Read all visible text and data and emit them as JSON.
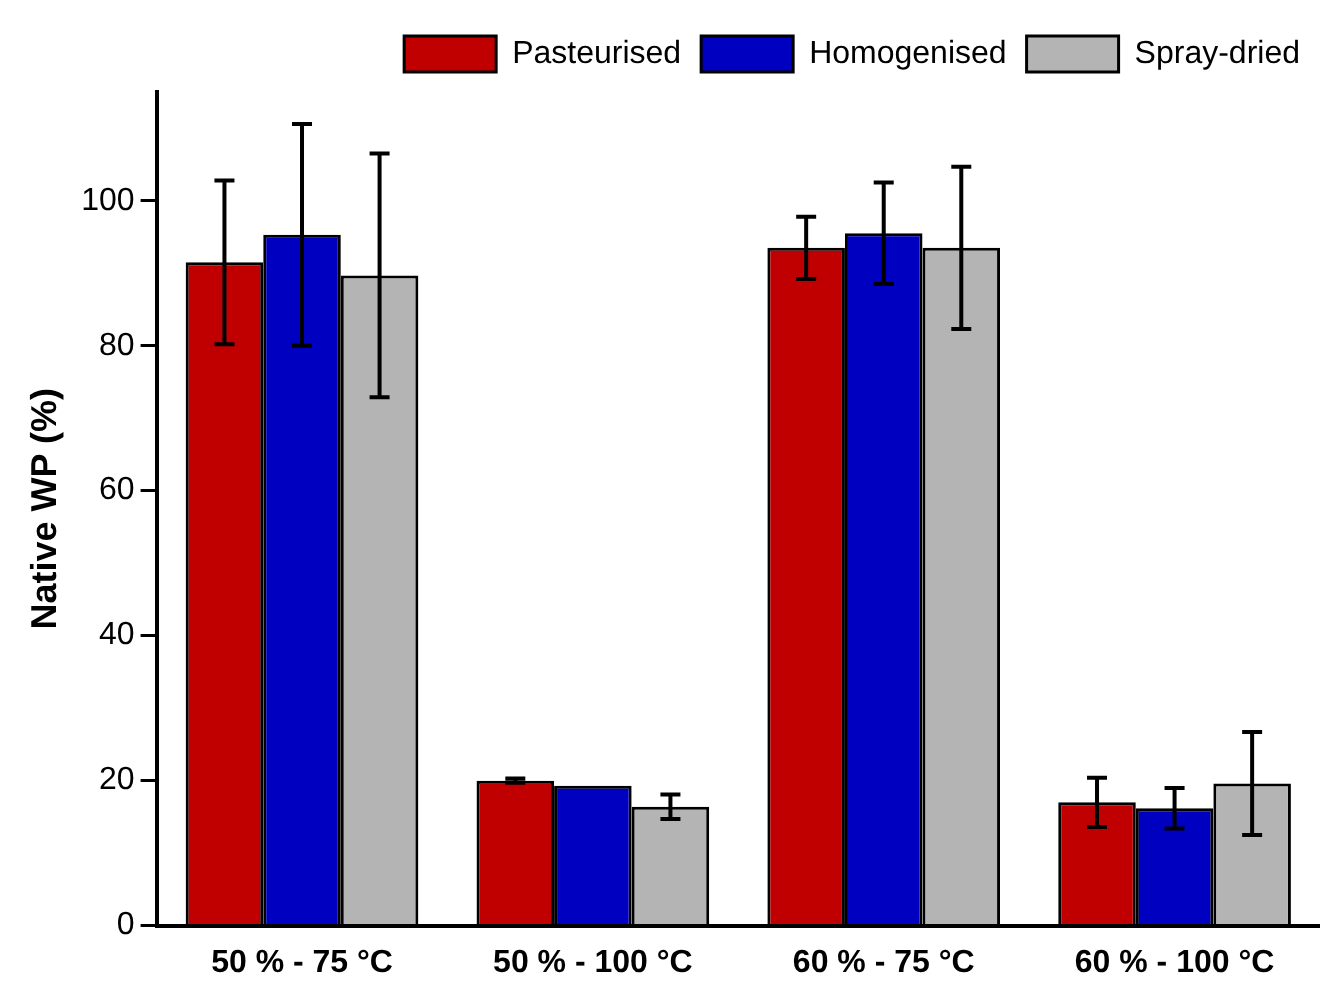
{
  "chart_data": {
    "type": "bar",
    "ylabel": "Native WP (%)",
    "categories": [
      "50 % - 75 °C",
      "50 % - 100 °C",
      "60 % - 75 °C",
      "60 % - 100 °C"
    ],
    "series": [
      {
        "name": "Pasteurised",
        "color": "#c00000",
        "values": [
          91.5,
          20,
          93.5,
          17
        ],
        "errors": [
          11.3,
          0.3,
          4.3,
          3.4
        ]
      },
      {
        "name": "Homogenised",
        "color": "#0000c0",
        "values": [
          95.3,
          19.3,
          95.5,
          16.2
        ],
        "errors": [
          15.3,
          null,
          7,
          2.8
        ]
      },
      {
        "name": "Spray-dried",
        "color": "#b4b4b4",
        "values": [
          89.7,
          16.4,
          93.5,
          19.6
        ],
        "errors": [
          16.8,
          1.7,
          11.2,
          7.1
        ]
      }
    ],
    "ylim": [
      0,
      115
    ],
    "yticks": [
      0,
      20,
      40,
      60,
      80,
      100
    ],
    "grid": false,
    "legend": "top right"
  }
}
